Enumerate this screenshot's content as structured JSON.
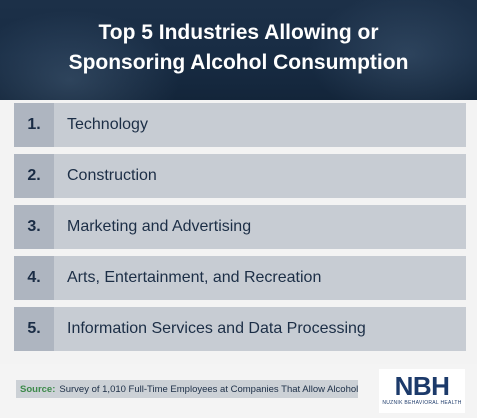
{
  "header": {
    "title_line1": "Top 5 Industries Allowing or",
    "title_line2": "Sponsoring Alcohol Consumption"
  },
  "list": {
    "items": [
      {
        "number": "1.",
        "label": "Technology"
      },
      {
        "number": "2.",
        "label": "Construction"
      },
      {
        "number": "3.",
        "label": "Marketing and Advertising"
      },
      {
        "number": "4.",
        "label": "Arts, Entertainment, and Recreation"
      },
      {
        "number": "5.",
        "label": "Information Services and Data Processing"
      }
    ]
  },
  "footer": {
    "source_label": "Source:",
    "source_text": "Survey of 1,010 Full-Time Employees at Companies That Allow Alcohol",
    "logo_mark": "NBH",
    "logo_subtitle": "NUZNIK BEHAVIORAL HEALTH"
  },
  "colors": {
    "header_bg": "#182c44",
    "number_cell": "#aeb5c0",
    "label_cell": "#c7ccd3",
    "text_dark": "#1c2e46",
    "source_accent": "#3d8a4a"
  }
}
